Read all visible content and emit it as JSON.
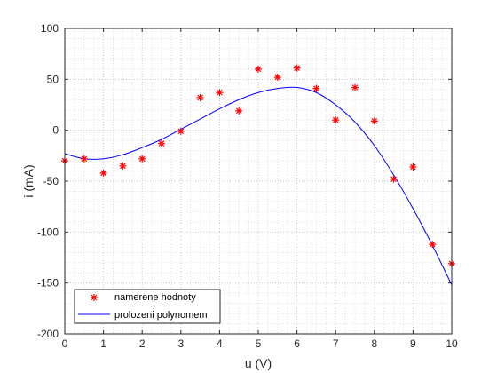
{
  "chart_data": {
    "type": "scatter",
    "title": "",
    "xlabel": "u (V)",
    "ylabel": "i (mA)",
    "xlim": [
      0,
      10
    ],
    "ylim": [
      -200,
      100
    ],
    "xticks": [
      0,
      1,
      2,
      3,
      4,
      5,
      6,
      7,
      8,
      9,
      10
    ],
    "yticks": [
      -200,
      -150,
      -100,
      -50,
      0,
      50,
      100
    ],
    "grid": "on, dotted minor",
    "legend_position": "bottom-left",
    "series": [
      {
        "name": "namerene hodnoty",
        "kind": "markers",
        "marker": "asterisk",
        "color": "#ff0000",
        "x": [
          0,
          0.5,
          1,
          1.5,
          2,
          2.5,
          3,
          3.5,
          4,
          4.5,
          5,
          5.5,
          6,
          6.5,
          7,
          7.5,
          8,
          8.5,
          9,
          9.5,
          10
        ],
        "y": [
          -30,
          -28,
          -42,
          -35,
          -28,
          -13,
          -1,
          32,
          37,
          19,
          60,
          52,
          61,
          41,
          10,
          42,
          9,
          -48,
          -36,
          -112,
          -131
        ]
      },
      {
        "name": "prolozeni polynomem",
        "kind": "line",
        "color": "#0000ff",
        "x": [
          0,
          0.5,
          1,
          1.5,
          2,
          2.5,
          3,
          3.5,
          4,
          4.5,
          5,
          5.5,
          6,
          6.5,
          7,
          7.5,
          8,
          8.5,
          9,
          9.5,
          10
        ],
        "y": [
          -23,
          -28,
          -28,
          -24,
          -17,
          -9,
          1,
          11,
          21,
          30,
          37,
          41,
          42,
          37,
          25,
          8,
          -15,
          -44,
          -77,
          -113,
          -152
        ]
      }
    ]
  }
}
